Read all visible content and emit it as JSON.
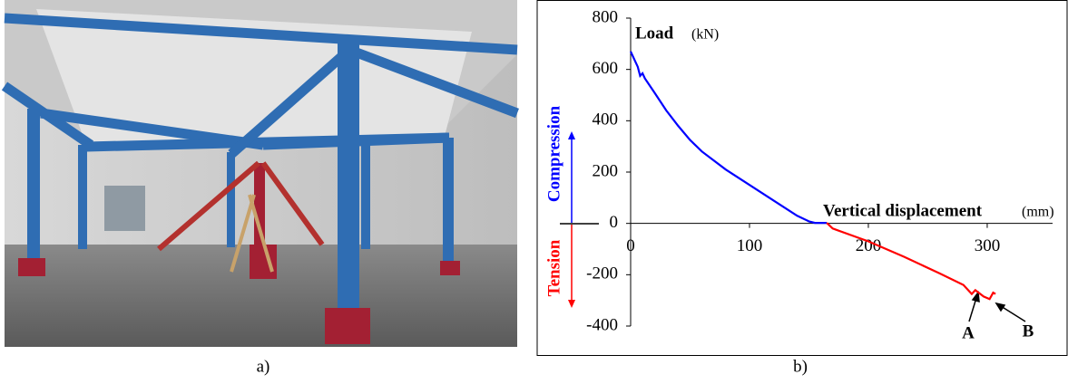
{
  "captions": [
    "a)",
    "b)"
  ],
  "chart_data": {
    "type": "line",
    "y_label_main": "Load",
    "y_label_unit": "(kN)",
    "x_label_main": "Vertical displacement",
    "x_label_unit": "(mm)",
    "compression_label": "Compression",
    "tension_label": "Tension",
    "annotations": [
      {
        "text": "A"
      },
      {
        "text": "B"
      }
    ],
    "series": [
      {
        "name": "Compression",
        "color": "#0000ff",
        "x": [
          0,
          3,
          6,
          8,
          10,
          12,
          20,
          30,
          40,
          50,
          60,
          80,
          100,
          120,
          140,
          150,
          155,
          165
        ],
        "values": [
          670,
          640,
          610,
          575,
          585,
          565,
          510,
          440,
          380,
          325,
          280,
          210,
          150,
          90,
          30,
          8,
          2,
          2
        ]
      },
      {
        "name": "Tension",
        "color": "#ff0000",
        "x": [
          165,
          170,
          200,
          230,
          260,
          280,
          287,
          290,
          297,
          302,
          305,
          307
        ],
        "values": [
          2,
          -20,
          -70,
          -130,
          -195,
          -240,
          -275,
          -260,
          -285,
          -295,
          -270,
          -275
        ]
      }
    ],
    "xlim": [
      0,
      355
    ],
    "ylim": [
      -400,
      800
    ],
    "xticks": [
      0,
      100,
      200,
      300
    ],
    "yticks": [
      -400,
      -200,
      0,
      200,
      400,
      600,
      800
    ]
  }
}
